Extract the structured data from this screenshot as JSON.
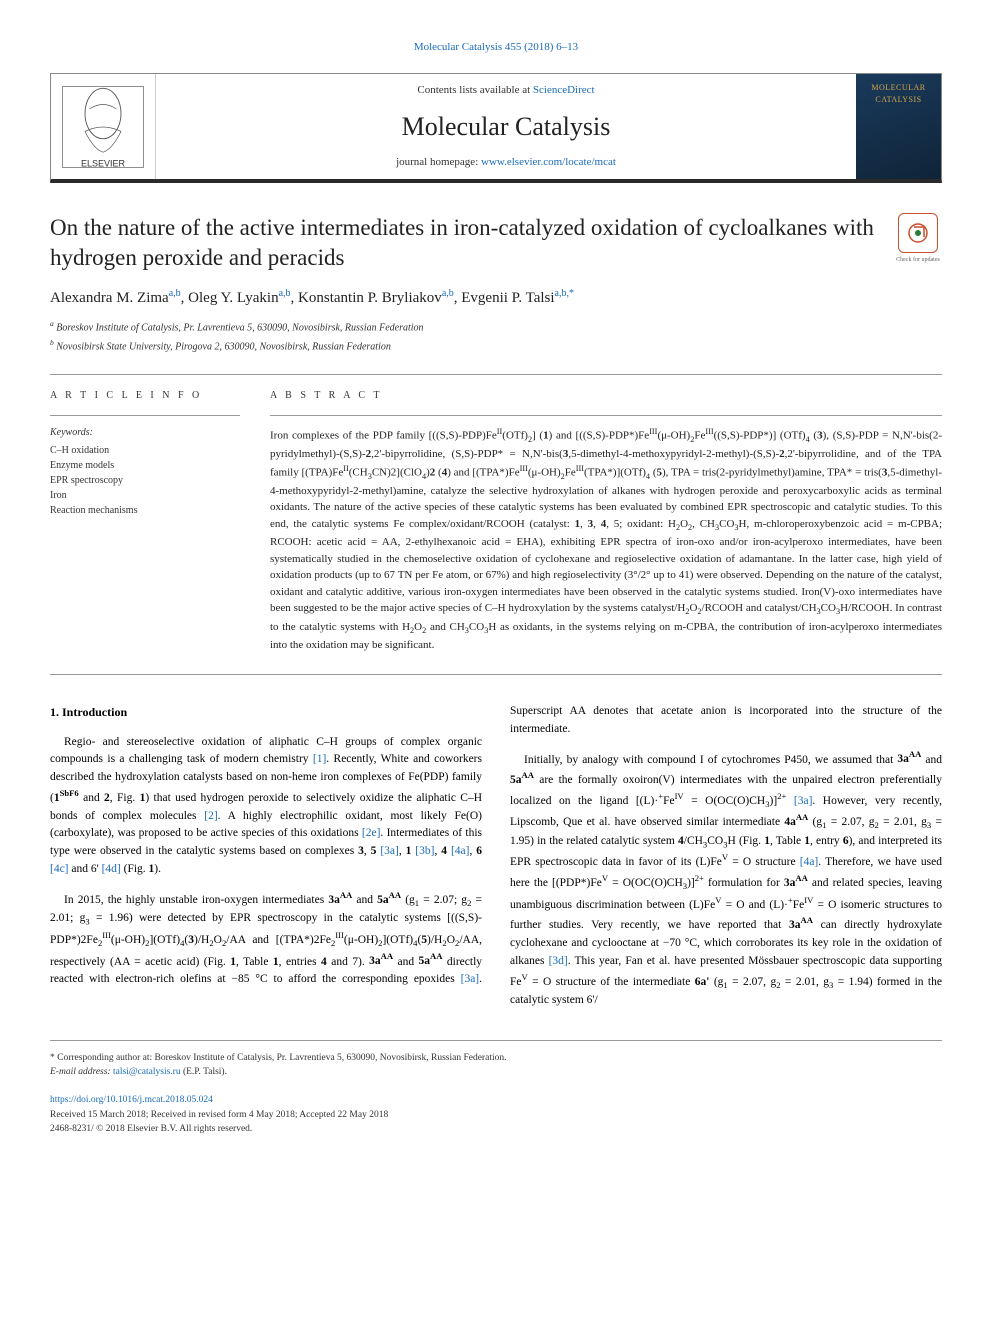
{
  "top_link": "Molecular Catalysis 455 (2018) 6–13",
  "header": {
    "contents_prefix": "Contents lists available at ",
    "contents_link": "ScienceDirect",
    "journal_name": "Molecular Catalysis",
    "homepage_prefix": "journal homepage: ",
    "homepage_url": "www.elsevier.com/locate/mcat",
    "cover_text_1": "MOLECULAR",
    "cover_text_2": "CATALYSIS",
    "elsevier_label": "ELSEVIER"
  },
  "check_updates": {
    "label": "Check for updates"
  },
  "title": "On the nature of the active intermediates in iron-catalyzed oxidation of cycloalkanes with hydrogen peroxide and peracids",
  "authors": [
    {
      "name": "Alexandra M. Zima",
      "sup": "a,b"
    },
    {
      "name": "Oleg Y. Lyakin",
      "sup": "a,b"
    },
    {
      "name": "Konstantin P. Bryliakov",
      "sup": "a,b"
    },
    {
      "name": "Evgenii P. Talsi",
      "sup": "a,b,",
      "corr": "*"
    }
  ],
  "affiliations": [
    {
      "marker": "a",
      "text": "Boreskov Institute of Catalysis, Pr. Lavrentieva 5, 630090, Novosibirsk, Russian Federation"
    },
    {
      "marker": "b",
      "text": "Novosibirsk State University, Pirogova 2, 630090, Novosibirsk, Russian Federation"
    }
  ],
  "article_info_label": "A R T I C L E  I N F O",
  "abstract_label": "A B S T R A C T",
  "keywords_label": "Keywords:",
  "keywords": [
    "C–H oxidation",
    "Enzyme models",
    "EPR spectroscopy",
    "Iron",
    "Reaction mechanisms"
  ],
  "abstract": "Iron complexes of the PDP family [((S,S)-PDP)FeII(OTf)2] (1) and [((S,S)-PDP*)FeIII(μ-OH)2FeIII((S,S)-PDP*)] (OTf)4 (3), (S,S)-PDP = N,N'-bis(2-pyridylmethyl)-(S,S)-2,2'-bipyrrolidine, (S,S)-PDP* = N,N'-bis(3,5-dimethyl-4-methoxypyridyl-2-methyl)-(S,S)-2,2'-bipyrrolidine, and of the TPA family [(TPA)FeII(CH3CN)2](ClO4)2 (4) and [(TPA*)FeIII(μ-OH)2FeIII(TPA*)](OTf)4 (5), TPA = tris(2-pyridylmethyl)amine, TPA* = tris(3,5-dimethyl-4-methoxypyridyl-2-methyl)amine, catalyze the selective hydroxylation of alkanes with hydrogen peroxide and peroxycarboxylic acids as terminal oxidants. The nature of the active species of these catalytic systems has been evaluated by combined EPR spectroscopic and catalytic studies. To this end, the catalytic systems Fe complex/oxidant/RCOOH (catalyst: 1, 3, 4, 5; oxidant: H2O2, CH3CO3H, m-chloroperoxybenzoic acid = m-CPBA; RCOOH: acetic acid = AA, 2-ethylhexanoic acid = EHA), exhibiting EPR spectra of iron-oxo and/or iron-acylperoxo intermediates, have been systematically studied in the chemoselective oxidation of cyclohexane and regioselective oxidation of adamantane. In the latter case, high yield of oxidation products (up to 67 TN per Fe atom, or 67%) and high regioselectivity (3°/2° up to 41) were observed. Depending on the nature of the catalyst, oxidant and catalytic additive, various iron-oxygen intermediates have been observed in the catalytic systems studied. Iron(V)-oxo intermediates have been suggested to be the major active species of C–H hydroxylation by the systems catalyst/H2O2/RCOOH and catalyst/CH3CO3H/RCOOH. In contrast to the catalytic systems with H2O2 and CH3CO3H as oxidants, in the systems relying on m-CPBA, the contribution of iron-acylperoxo intermediates into the oxidation may be significant.",
  "intro_heading": "1. Introduction",
  "intro_paragraphs": [
    "Regio- and stereoselective oxidation of aliphatic C–H groups of complex organic compounds is a challenging task of modern chemistry [1]. Recently, White and coworkers described the hydroxylation catalysts based on non-heme iron complexes of Fe(PDP) family (1SbF6 and 2, Fig. 1) that used hydrogen peroxide to selectively oxidize the aliphatic C–H bonds of complex molecules [2]. A highly electrophilic oxidant, most likely Fe(O)(carboxylate), was proposed to be active species of this oxidations [2e]. Intermediates of this type were observed in the catalytic systems based on complexes 3, 5 [3a], 1 [3b], 4 [4a], 6 [4c] and 6' [4d] (Fig. 1).",
    "In 2015, the highly unstable iron-oxygen intermediates 3aAA and 5aAA (g1 = 2.07; g2 = 2.01; g3 = 1.96) were detected by EPR spectroscopy in the catalytic systems [((S,S)-PDP*)2Fe2III(μ-OH)2](OTf)4(3)/H2O2/AA and [(TPA*)2Fe2III(μ-OH)2](OTf)4(5)/H2O2/AA, respectively (AA = acetic acid) (Fig. 1, Table 1, entries 4 and 7). 3aAA and 5aAA directly reacted with electron-rich olefins at −85 °C to afford the corresponding epoxides [3a]. Superscript AA denotes that acetate anion is incorporated into the structure of the intermediate.",
    "Initially, by analogy with compound I of cytochromes P450, we assumed that 3aAA and 5aAA are the formally oxoiron(V) intermediates with the unpaired electron preferentially localized on the ligand [(L)·+FeIV = O(OC(O)CH3)]2+ [3a]. However, very recently, Lipscomb, Que et al. have observed similar intermediate 4aAA (g1 = 2.07, g2 = 2.01, g3 = 1.95) in the related catalytic system 4/CH3CO3H (Fig. 1, Table 1, entry 6), and interpreted its EPR spectroscopic data in favor of its (L)FeV = O structure [4a]. Therefore, we have used here the [(PDP*)FeV = O(OC(O)CH3)]2+ formulation for 3aAA and related species, leaving unambiguous discrimination between (L)FeV = O and (L)·+FeIV = O isomeric structures to further studies. Very recently, we have reported that 3aAA can directly hydroxylate cyclohexane and cyclooctane at −70 °C, which corroborates its key role in the oxidation of alkanes [3d]. This year, Fan et al. have presented Mössbauer spectroscopic data supporting FeV = O structure of the intermediate 6a' (g1 = 2.07, g2 = 2.01, g3 = 1.94) formed in the catalytic system 6'/"
  ],
  "footnote": {
    "corr_text": "* Corresponding author at: Boreskov Institute of Catalysis, Pr. Lavrentieva 5, 630090, Novosibirsk, Russian Federation.",
    "email_label": "E-mail address: ",
    "email": "talsi@catalysis.ru",
    "email_suffix": " (E.P. Talsi)."
  },
  "doi": {
    "url": "https://doi.org/10.1016/j.mcat.2018.05.024",
    "received": "Received 15 March 2018; Received in revised form 4 May 2018; Accepted 22 May 2018",
    "copyright": "2468-8231/ © 2018 Elsevier B.V. All rights reserved."
  },
  "colors": {
    "link": "#1a6bb8",
    "border": "#999",
    "text": "#222",
    "cover_bg_start": "#1a3a5c",
    "cover_bg_end": "#0f2438",
    "cover_gold": "#d4a84b",
    "badge_border": "#c94f2e"
  }
}
